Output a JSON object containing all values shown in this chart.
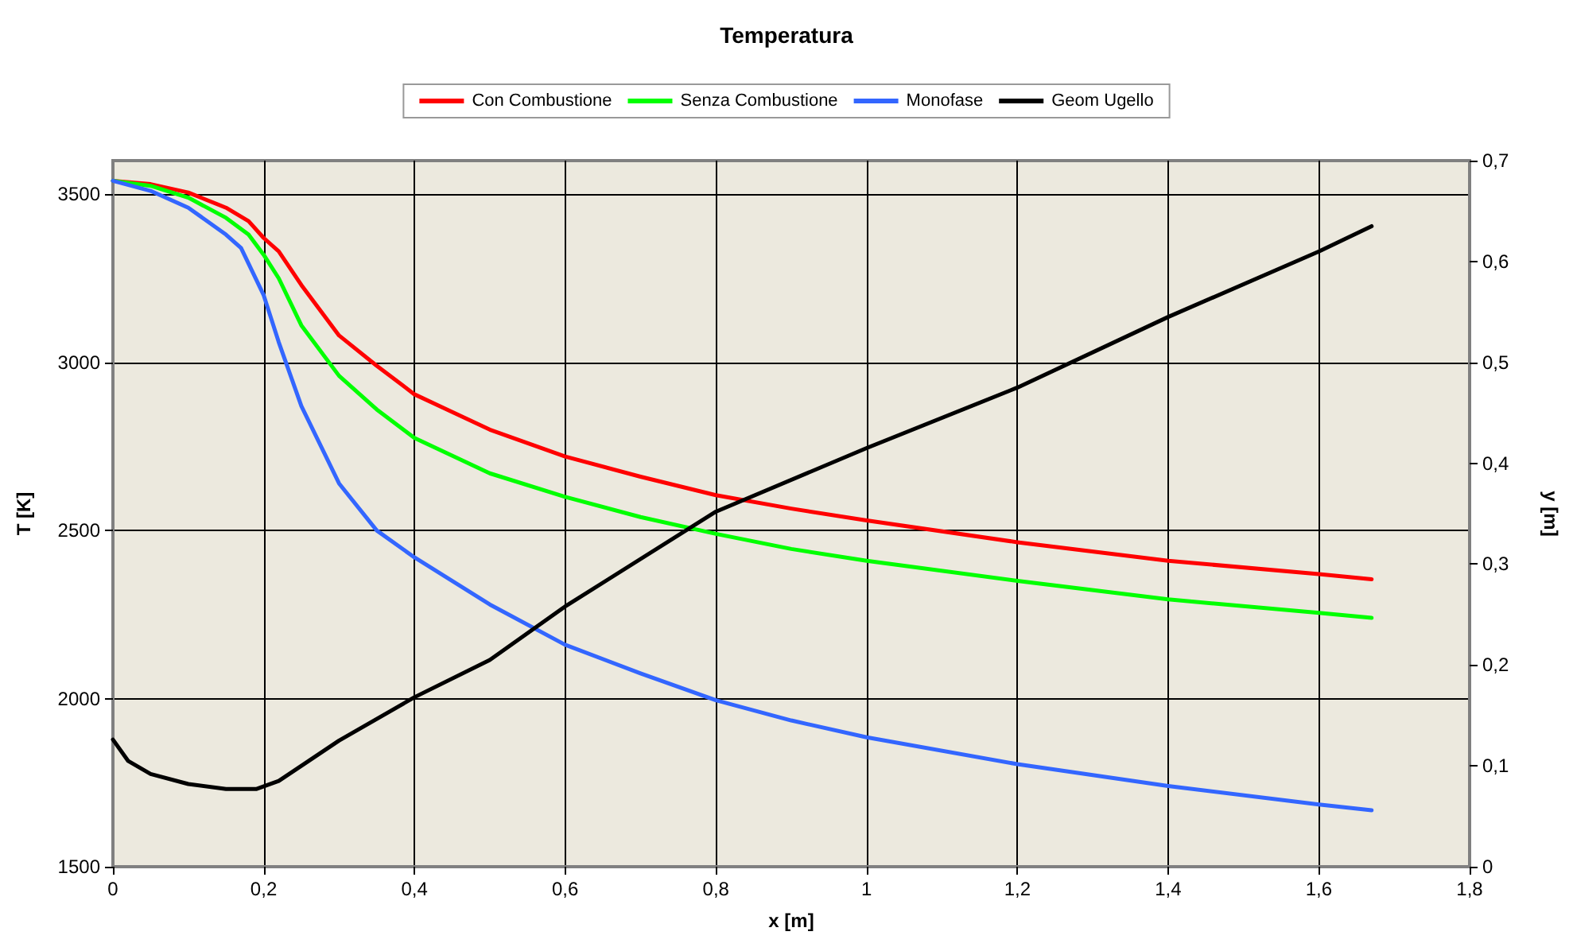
{
  "chart_data": {
    "type": "line",
    "title": "Temperatura",
    "xlabel": "x [m]",
    "ylabel": "T [K]",
    "y2label": "y [m]",
    "xlim": [
      0,
      1.8
    ],
    "xticks": [
      0,
      {
        "value": 0.2,
        "label": "0,2"
      },
      {
        "value": 0.4,
        "label": "0,4"
      },
      {
        "value": 0.6,
        "label": "0,6"
      },
      {
        "value": 0.8,
        "label": "0,8"
      },
      1,
      {
        "value": 1.2,
        "label": "1,2"
      },
      {
        "value": 1.4,
        "label": "1,4"
      },
      {
        "value": 1.6,
        "label": "1,6"
      },
      {
        "value": 1.8,
        "label": "1,8"
      }
    ],
    "ylim": [
      1500,
      3600
    ],
    "yticks": [
      1500,
      2000,
      2500,
      3000,
      3500
    ],
    "y2lim": [
      0,
      0.7
    ],
    "y2ticks": [
      0,
      {
        "value": 0.1,
        "label": "0,1"
      },
      {
        "value": 0.2,
        "label": "0,2"
      },
      {
        "value": 0.3,
        "label": "0,3"
      },
      {
        "value": 0.4,
        "label": "0,4"
      },
      {
        "value": 0.5,
        "label": "0,5"
      },
      {
        "value": 0.6,
        "label": "0,6"
      },
      {
        "value": 0.7,
        "label": "0,7"
      }
    ],
    "grid": true,
    "legend": "top",
    "marker": "none",
    "line_style": "solid",
    "series": [
      {
        "name": "Con Combustione",
        "color": "#ff0000",
        "x": [
          0,
          0.05,
          0.1,
          0.15,
          0.18,
          0.2,
          0.22,
          0.25,
          0.3,
          0.35,
          0.4,
          0.5,
          0.6,
          0.7,
          0.8,
          0.9,
          1.0,
          1.2,
          1.4,
          1.6,
          1.67
        ],
        "values": [
          3540,
          3530,
          3505,
          3460,
          3420,
          3370,
          3330,
          3230,
          3080,
          2990,
          2905,
          2800,
          2720,
          2660,
          2605,
          2565,
          2530,
          2465,
          2410,
          2370,
          2355
        ]
      },
      {
        "name": "Senza Combustione",
        "color": "#00ff00",
        "x": [
          0,
          0.05,
          0.1,
          0.15,
          0.18,
          0.2,
          0.22,
          0.25,
          0.3,
          0.35,
          0.4,
          0.5,
          0.6,
          0.7,
          0.8,
          0.9,
          1.0,
          1.2,
          1.4,
          1.6,
          1.67
        ],
        "values": [
          3540,
          3525,
          3490,
          3430,
          3380,
          3320,
          3250,
          3110,
          2960,
          2860,
          2775,
          2670,
          2600,
          2540,
          2490,
          2445,
          2410,
          2350,
          2295,
          2255,
          2240
        ]
      },
      {
        "name": "Monofase",
        "color": "#3366ff",
        "x": [
          0,
          0.05,
          0.1,
          0.15,
          0.17,
          0.2,
          0.22,
          0.25,
          0.3,
          0.35,
          0.4,
          0.5,
          0.6,
          0.7,
          0.8,
          0.9,
          1.0,
          1.2,
          1.4,
          1.6,
          1.67
        ],
        "values": [
          3540,
          3510,
          3460,
          3380,
          3340,
          3200,
          3060,
          2870,
          2640,
          2500,
          2420,
          2280,
          2160,
          2075,
          1995,
          1935,
          1885,
          1805,
          1740,
          1685,
          1668
        ]
      },
      {
        "name": "Geom Ugello",
        "color": "#000000",
        "axis": "y2",
        "x": [
          0,
          0.02,
          0.05,
          0.1,
          0.15,
          0.19,
          0.22,
          0.25,
          0.3,
          0.4,
          0.5,
          0.6,
          0.8,
          1.0,
          1.2,
          1.4,
          1.6,
          1.67
        ],
        "values": [
          0.126,
          0.105,
          0.092,
          0.082,
          0.077,
          0.077,
          0.085,
          0.1,
          0.125,
          0.168,
          0.205,
          0.258,
          0.352,
          0.415,
          0.475,
          0.545,
          0.61,
          0.635
        ]
      }
    ]
  }
}
